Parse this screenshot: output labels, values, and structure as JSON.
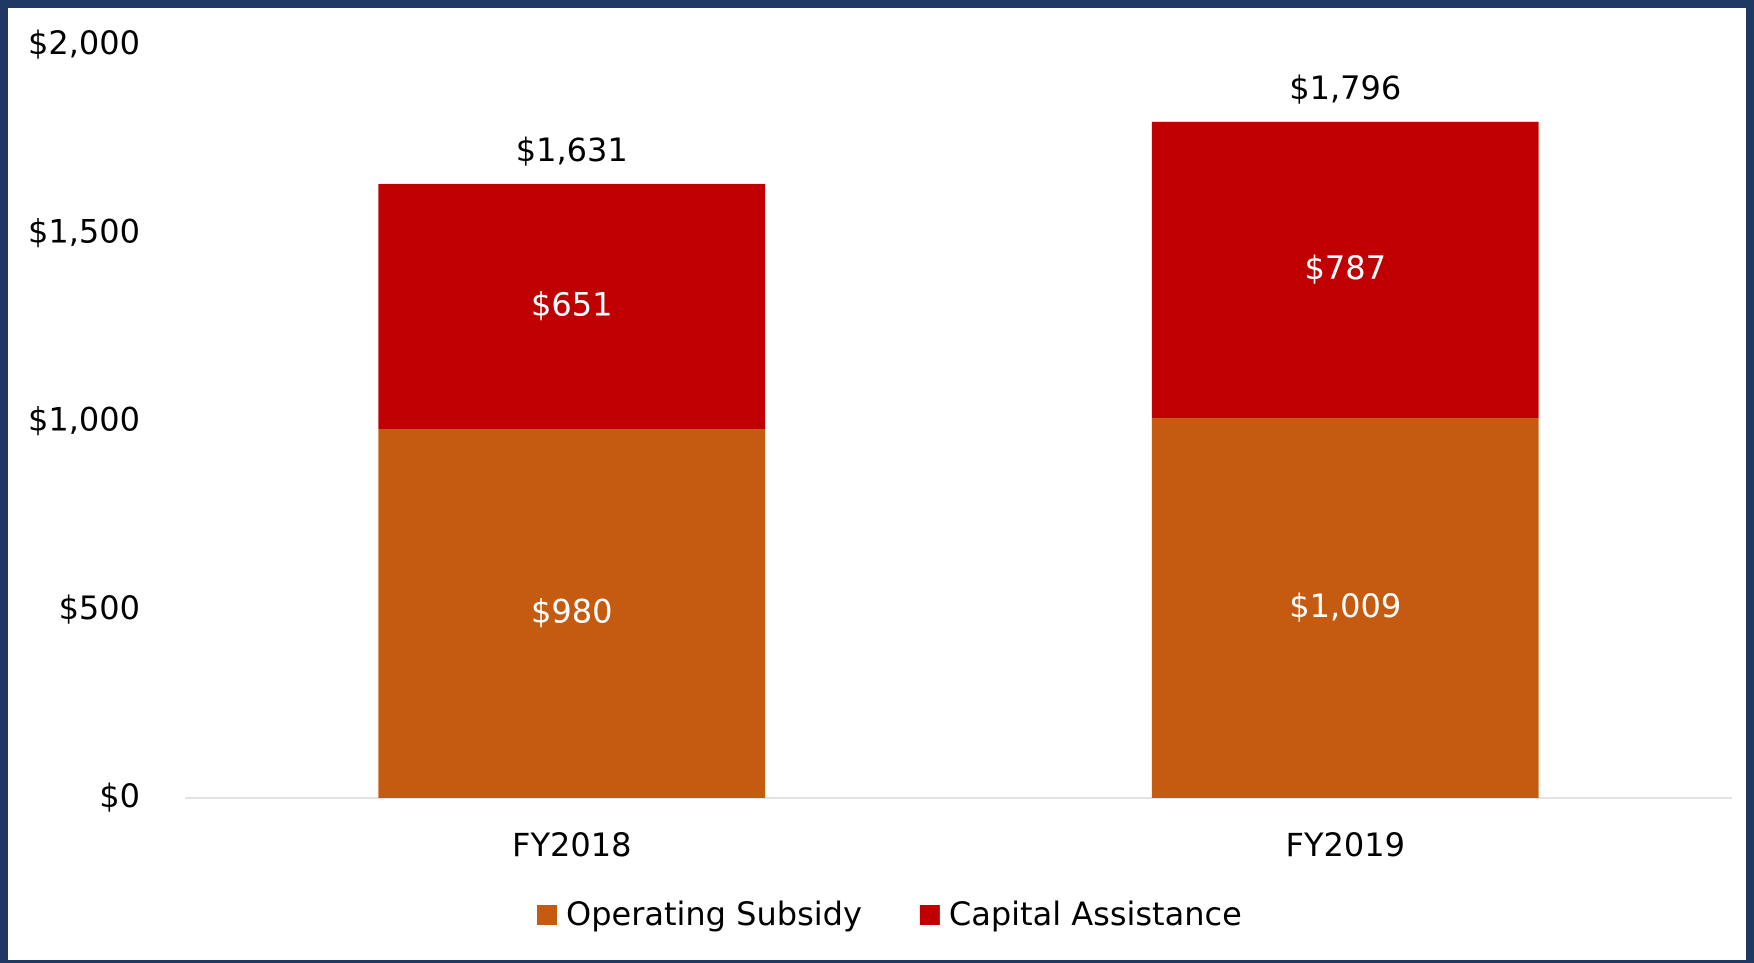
{
  "chart_data": {
    "type": "stacked_bar",
    "categories": [
      "FY2018",
      "FY2019"
    ],
    "series": [
      {
        "name": "Operating Subsidy",
        "color": "#c55a11",
        "values": [
          980,
          1009
        ],
        "value_labels": [
          "$980",
          "$1,009"
        ]
      },
      {
        "name": "Capital Assistance",
        "color": "#c00000",
        "values": [
          651,
          787
        ],
        "value_labels": [
          "$651",
          "$787"
        ]
      }
    ],
    "totals": [
      1631,
      1796
    ],
    "total_labels": [
      "$1,631",
      "$1,796"
    ],
    "ylim": [
      0,
      2000
    ],
    "yticks": [
      {
        "value": 0,
        "label": "$0"
      },
      {
        "value": 500,
        "label": "$500"
      },
      {
        "value": 1000,
        "label": "$1,000"
      },
      {
        "value": 1500,
        "label": "$1,500"
      },
      {
        "value": 2000,
        "label": "$2,000"
      }
    ],
    "grid": false,
    "legend": "bottom"
  }
}
